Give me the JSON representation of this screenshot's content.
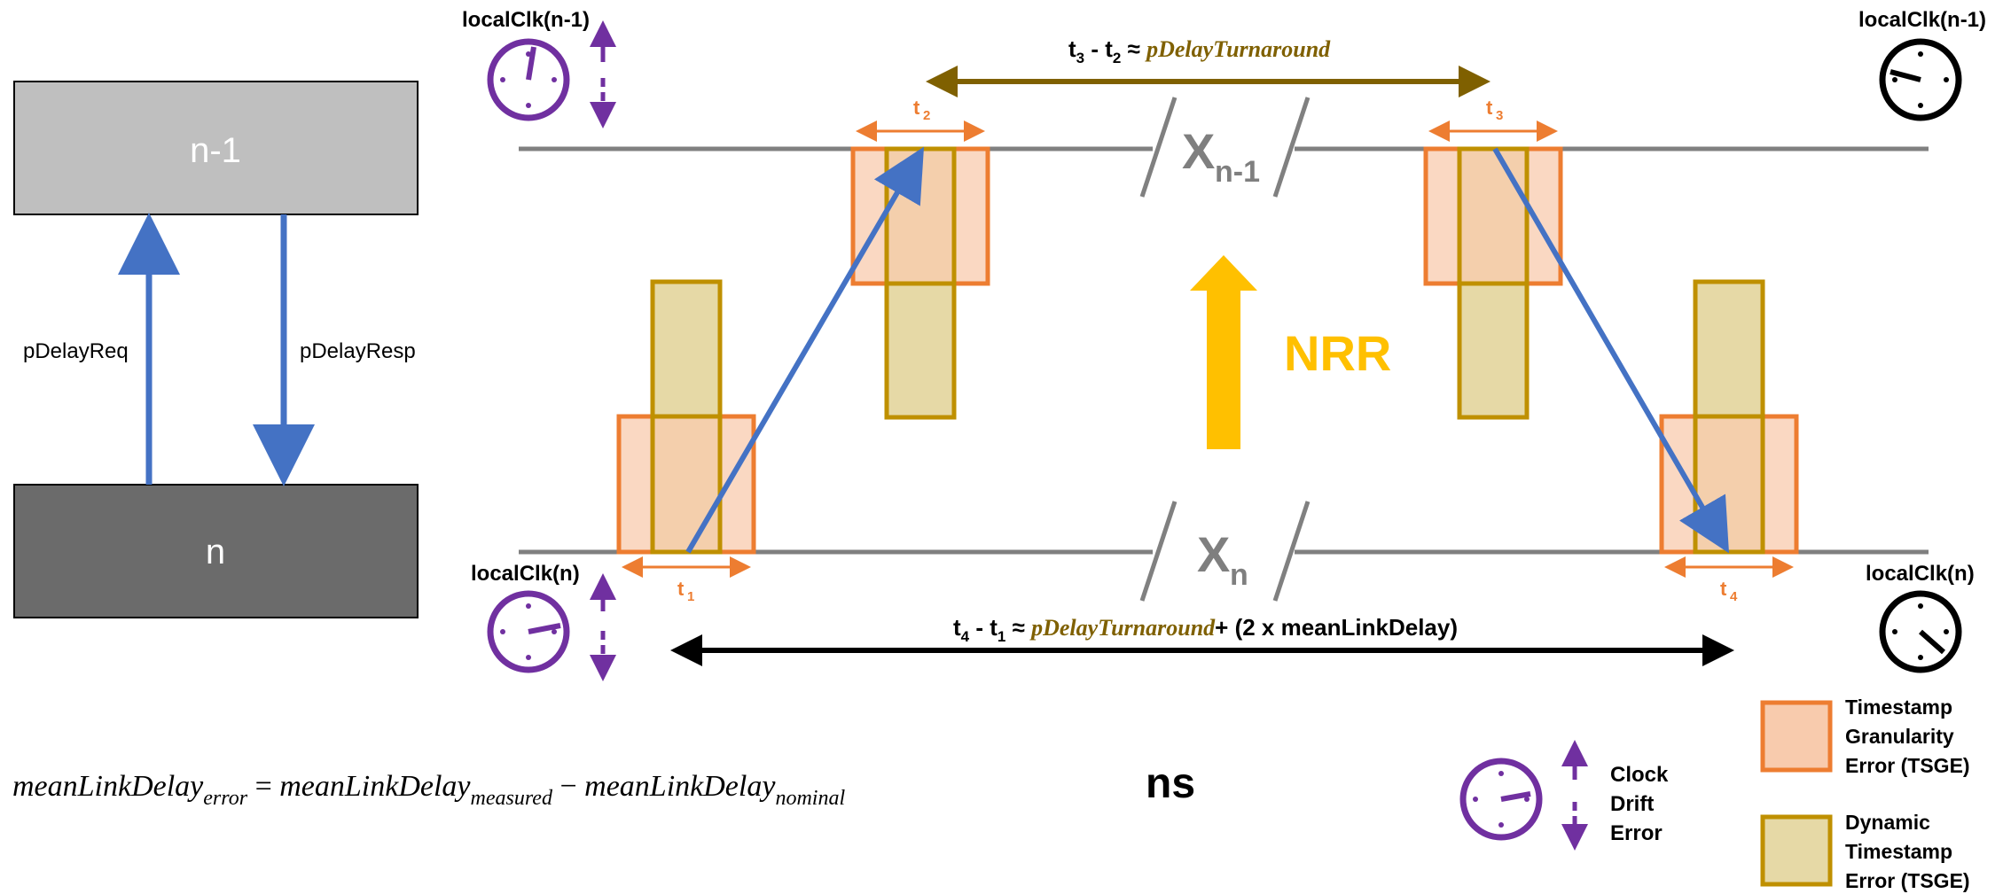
{
  "nodes": {
    "upper": "n-1",
    "lower": "n"
  },
  "messages": {
    "request": "pDelayReq",
    "response": "pDelayResp"
  },
  "clocks": {
    "top_left": "localClk(n-1)",
    "top_right": "localClk(n-1)",
    "bottom_left": "localClk(n)",
    "bottom_right": "localClk(n)"
  },
  "timestamps": {
    "t1": "t",
    "t1_sub": "1",
    "t2": "t",
    "t2_sub": "2",
    "t3": "t",
    "t3_sub": "3",
    "t4": "t",
    "t4_sub": "4"
  },
  "lines": {
    "upper_label": "X",
    "upper_sub": "n-1",
    "lower_label": "X",
    "lower_sub": "n"
  },
  "top_formula": {
    "prefix": "t",
    "sub_a": "3",
    "middle": " - t",
    "sub_b": "2",
    "approx": " ≈ ",
    "term": "pDelayTurnaround"
  },
  "bottom_formula": {
    "prefix": "t",
    "sub_a": "4",
    "middle": " - t",
    "sub_b": "1",
    "approx": " ≈ ",
    "term": "pDelayTurnaround",
    "suffix": "+ (2 x meanLinkDelay)"
  },
  "nrr_label": "NRR",
  "equation": {
    "lhs": "meanLinkDelay",
    "lhs_sub": "error",
    "eq": " = ",
    "a": "meanLinkDelay",
    "a_sub": "measured",
    "minus": " − ",
    "b": "meanLinkDelay",
    "b_sub": "nominal",
    "unit": "ns"
  },
  "legend": {
    "clock_drift": [
      "Clock",
      "Drift",
      "Error"
    ],
    "tsge": [
      "Timestamp",
      "Granularity",
      "Error (TSGE)"
    ],
    "dtse": [
      "Dynamic",
      "Timestamp",
      "Error (TSGE)"
    ]
  },
  "colors": {
    "arrow_blue": "#4472c4",
    "orange": "#ed7d31",
    "orange_fill": "#f8cbad",
    "olive": "#bf9000",
    "olive_fill": "#e6d9a6",
    "purple": "#7030a0",
    "nrr_yellow": "#ffc000",
    "turnaround_brown": "#7f6000",
    "line_gray": "#808080"
  }
}
